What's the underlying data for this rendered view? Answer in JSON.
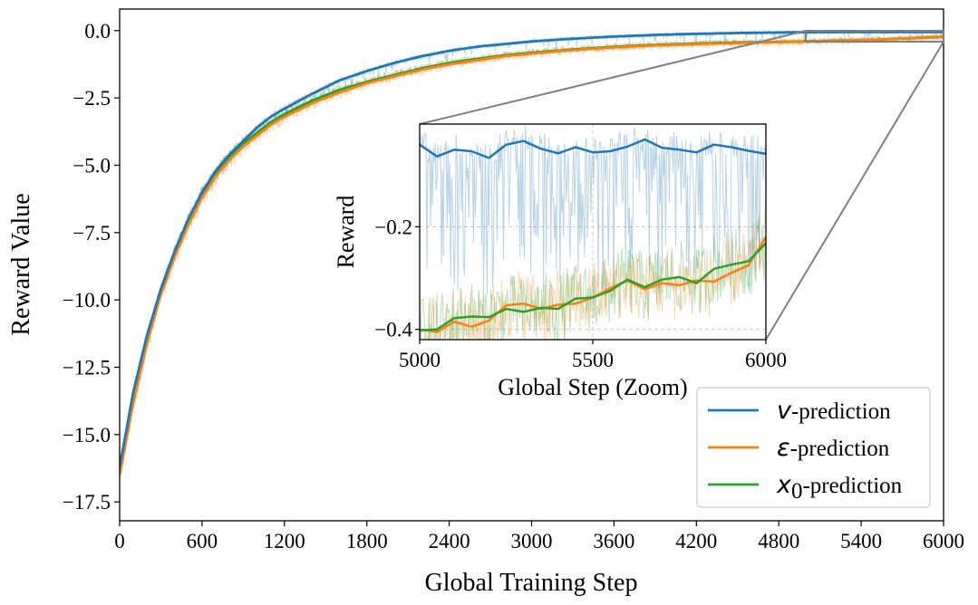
{
  "chart_data": [
    {
      "type": "line",
      "xlabel": "Global Training Step",
      "ylabel": "Reward Value",
      "xlim": [
        0,
        6000
      ],
      "ylim": [
        -18.2,
        0.8
      ],
      "xticks": [
        0,
        600,
        1200,
        1800,
        2400,
        3000,
        3600,
        4200,
        4800,
        5400,
        6000
      ],
      "xtick_labels": [
        "0",
        "600",
        "1200",
        "1800",
        "2400",
        "3000",
        "3600",
        "4200",
        "4800",
        "5400",
        "6000"
      ],
      "yticks": [
        0.0,
        -2.5,
        -5.0,
        -7.5,
        -10.0,
        -12.5,
        -15.0,
        -17.5
      ],
      "ytick_labels": [
        "0.0",
        "−2.5",
        "−5.0",
        "−7.5",
        "−10.0",
        "−12.5",
        "−15.0",
        "−17.5"
      ],
      "grid": false,
      "legend_position": "bottom-right",
      "series": [
        {
          "name": "v-prediction",
          "symbol": "v",
          "suffix": "-prediction",
          "color": "#1f77b4",
          "x": [
            0,
            100,
            200,
            300,
            400,
            500,
            600,
            700,
            800,
            900,
            1000,
            1100,
            1200,
            1400,
            1600,
            1800,
            2000,
            2200,
            2400,
            2600,
            2800,
            3000,
            3300,
            3600,
            3900,
            4200,
            4500,
            4800,
            5000,
            5500,
            6000
          ],
          "values": [
            -16.2,
            -13.4,
            -11.3,
            -9.6,
            -8.2,
            -7.0,
            -6.0,
            -5.2,
            -4.6,
            -4.1,
            -3.6,
            -3.2,
            -2.9,
            -2.35,
            -1.85,
            -1.5,
            -1.2,
            -0.95,
            -0.75,
            -0.6,
            -0.5,
            -0.4,
            -0.3,
            -0.22,
            -0.16,
            -0.12,
            -0.09,
            -0.07,
            -0.06,
            -0.05,
            -0.05
          ]
        },
        {
          "name": "ε-prediction",
          "symbol": "ε",
          "suffix": "-prediction",
          "color": "#ff7f0e",
          "x": [
            0,
            100,
            200,
            300,
            400,
            500,
            600,
            700,
            800,
            900,
            1000,
            1100,
            1200,
            1400,
            1600,
            1800,
            2000,
            2200,
            2400,
            2600,
            2800,
            3000,
            3300,
            3600,
            3900,
            4200,
            4500,
            4800,
            5000,
            5500,
            6000
          ],
          "values": [
            -16.5,
            -13.8,
            -11.6,
            -9.8,
            -8.4,
            -7.2,
            -6.2,
            -5.4,
            -4.8,
            -4.3,
            -3.9,
            -3.5,
            -3.2,
            -2.7,
            -2.3,
            -1.95,
            -1.7,
            -1.45,
            -1.25,
            -1.1,
            -0.95,
            -0.85,
            -0.72,
            -0.62,
            -0.55,
            -0.5,
            -0.46,
            -0.43,
            -0.4,
            -0.34,
            -0.22
          ]
        },
        {
          "name": "x0-prediction",
          "symbol": "x",
          "subscript": "0",
          "suffix": "-prediction",
          "color": "#2ca02c",
          "x": [
            0,
            100,
            200,
            300,
            400,
            500,
            600,
            700,
            800,
            900,
            1000,
            1100,
            1200,
            1400,
            1600,
            1800,
            2000,
            2200,
            2400,
            2600,
            2800,
            3000,
            3300,
            3600,
            3900,
            4200,
            4500,
            4800,
            5000,
            5500,
            6000
          ],
          "values": [
            -16.4,
            -13.6,
            -11.4,
            -9.7,
            -8.3,
            -7.1,
            -6.1,
            -5.3,
            -4.7,
            -4.2,
            -3.8,
            -3.4,
            -3.1,
            -2.6,
            -2.2,
            -1.9,
            -1.65,
            -1.4,
            -1.2,
            -1.05,
            -0.92,
            -0.82,
            -0.7,
            -0.6,
            -0.53,
            -0.48,
            -0.44,
            -0.42,
            -0.4,
            -0.34,
            -0.23
          ]
        }
      ]
    },
    {
      "type": "line",
      "inset": true,
      "xlabel": "Global Step (Zoom)",
      "ylabel": "Reward",
      "xlim": [
        5000,
        6000
      ],
      "ylim": [
        -0.42,
        0.0
      ],
      "xticks": [
        5000,
        5500,
        6000
      ],
      "xtick_labels": [
        "5000",
        "5500",
        "6000"
      ],
      "yticks": [
        -0.2,
        -0.4
      ],
      "ytick_labels": [
        "−0.2",
        "−0.4"
      ],
      "grid": true,
      "series": [
        {
          "name": "v-prediction",
          "color": "#1f77b4",
          "x": [
            5000,
            5050,
            5100,
            5150,
            5200,
            5250,
            5300,
            5350,
            5400,
            5450,
            5500,
            5550,
            5600,
            5650,
            5700,
            5750,
            5800,
            5850,
            5900,
            5950,
            6000
          ],
          "values": [
            -0.04,
            -0.063,
            -0.05,
            -0.053,
            -0.066,
            -0.04,
            -0.033,
            -0.048,
            -0.057,
            -0.045,
            -0.055,
            -0.053,
            -0.044,
            -0.03,
            -0.046,
            -0.05,
            -0.055,
            -0.04,
            -0.045,
            -0.052,
            -0.058
          ]
        },
        {
          "name": "ε-prediction",
          "color": "#ff7f0e",
          "x": [
            5000,
            5050,
            5100,
            5150,
            5200,
            5250,
            5300,
            5350,
            5400,
            5450,
            5500,
            5550,
            5600,
            5650,
            5700,
            5750,
            5800,
            5850,
            5900,
            5950,
            6000
          ],
          "values": [
            -0.4,
            -0.405,
            -0.385,
            -0.395,
            -0.383,
            -0.353,
            -0.35,
            -0.36,
            -0.352,
            -0.35,
            -0.338,
            -0.32,
            -0.305,
            -0.322,
            -0.31,
            -0.314,
            -0.305,
            -0.307,
            -0.29,
            -0.275,
            -0.22
          ]
        },
        {
          "name": "x0-prediction",
          "color": "#2ca02c",
          "x": [
            5000,
            5050,
            5100,
            5150,
            5200,
            5250,
            5300,
            5350,
            5400,
            5450,
            5500,
            5550,
            5600,
            5650,
            5700,
            5750,
            5800,
            5850,
            5900,
            5950,
            6000
          ],
          "values": [
            -0.402,
            -0.4,
            -0.378,
            -0.375,
            -0.376,
            -0.36,
            -0.366,
            -0.358,
            -0.36,
            -0.34,
            -0.338,
            -0.325,
            -0.303,
            -0.318,
            -0.303,
            -0.298,
            -0.31,
            -0.282,
            -0.274,
            -0.267,
            -0.232
          ]
        }
      ]
    }
  ]
}
